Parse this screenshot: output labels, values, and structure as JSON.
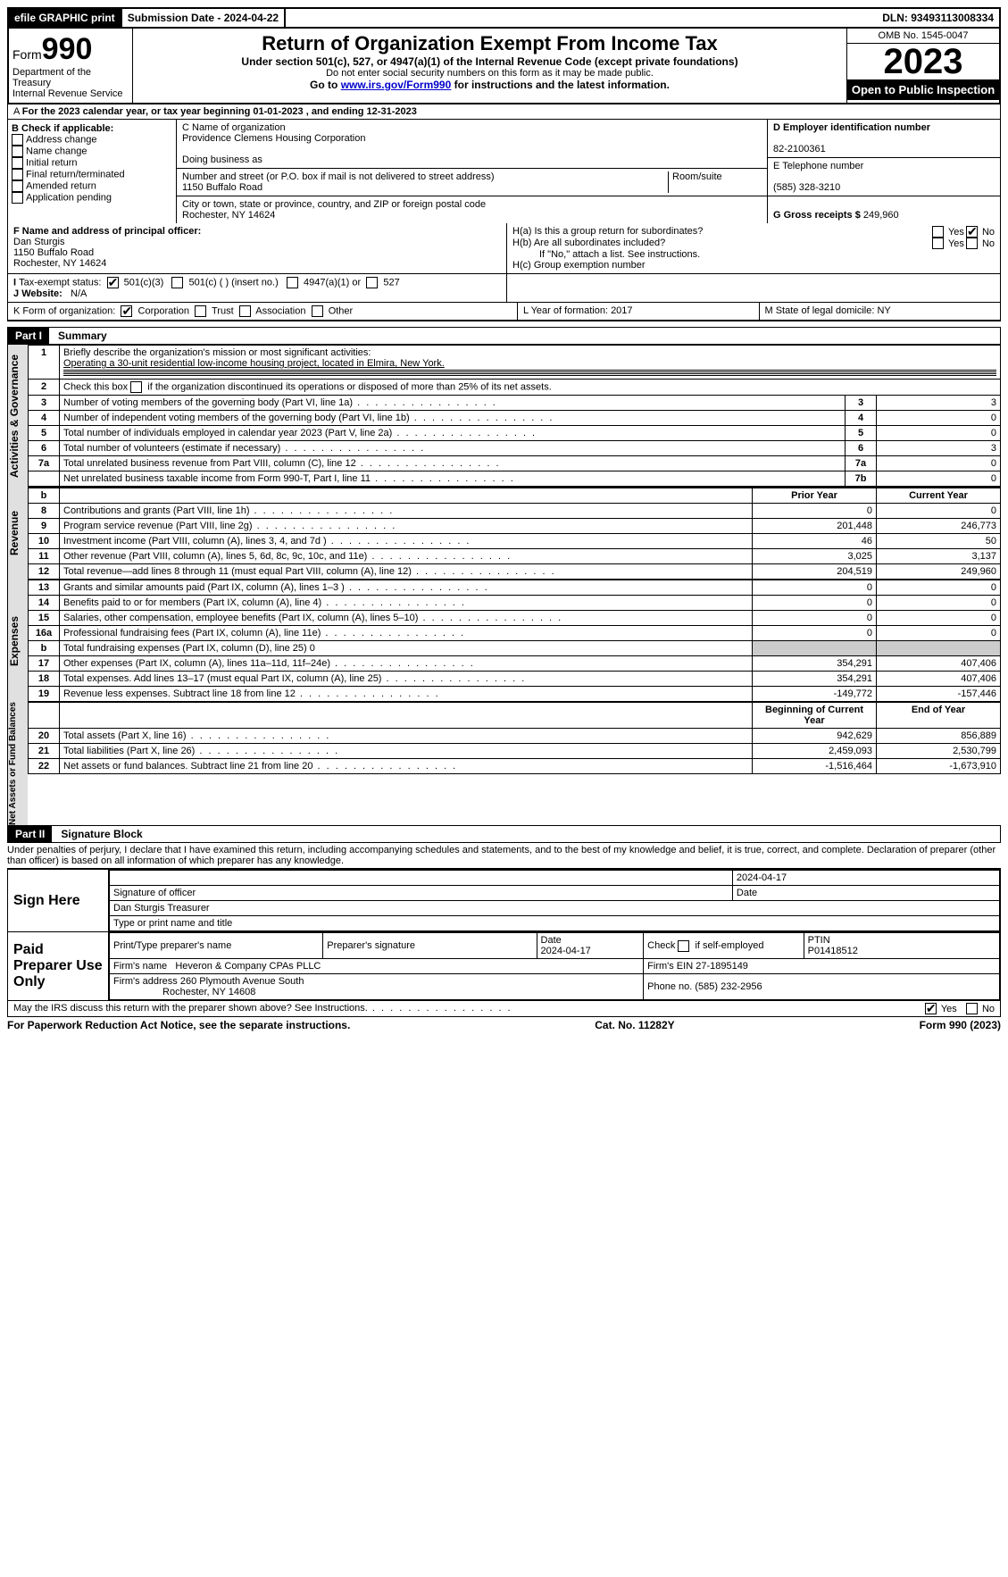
{
  "topbar": {
    "efile": "efile GRAPHIC print",
    "submission_label": "Submission Date - 2024-04-22",
    "dln_label": "DLN: 93493113008334"
  },
  "header": {
    "form_prefix": "Form",
    "form_num": "990",
    "dept": "Department of the Treasury",
    "irs": "Internal Revenue Service",
    "title": "Return of Organization Exempt From Income Tax",
    "subtitle": "Under section 501(c), 527, or 4947(a)(1) of the Internal Revenue Code (except private foundations)",
    "ssn_note": "Do not enter social security numbers on this form as it may be made public.",
    "goto_pre": "Go to ",
    "goto_link": "www.irs.gov/Form990",
    "goto_post": " for instructions and the latest information.",
    "omb": "OMB No. 1545-0047",
    "year": "2023",
    "open": "Open to Public Inspection"
  },
  "A": "For the 2023 calendar year, or tax year beginning 01-01-2023   , and ending 12-31-2023",
  "B": {
    "label": "B Check if applicable:",
    "opts": [
      "Address change",
      "Name change",
      "Initial return",
      "Final return/terminated",
      "Amended return",
      "Application pending"
    ]
  },
  "C": {
    "name_lbl": "C Name of organization",
    "name": "Providence Clemens Housing Corporation",
    "dba_lbl": "Doing business as",
    "dba": "",
    "addr_lbl": "Number and street (or P.O. box if mail is not delivered to street address)",
    "room_lbl": "Room/suite",
    "addr": "1150 Buffalo Road",
    "city_lbl": "City or town, state or province, country, and ZIP or foreign postal code",
    "city": "Rochester, NY  14624"
  },
  "D": {
    "lbl": "D Employer identification number",
    "val": "82-2100361"
  },
  "E": {
    "lbl": "E Telephone number",
    "val": "(585) 328-3210"
  },
  "G": {
    "lbl": "G Gross receipts $",
    "val": "249,960"
  },
  "F": {
    "lbl": "F  Name and address of principal officer:",
    "name": "Dan Sturgis",
    "addr1": "1150 Buffalo Road",
    "addr2": "Rochester, NY  14624"
  },
  "H": {
    "a_lbl": "H(a)  Is this a group return for subordinates?",
    "b_lbl": "H(b)  Are all subordinates included?",
    "b_note": "If \"No,\" attach a list. See instructions.",
    "c_lbl": "H(c)  Group exemption number",
    "yes": "Yes",
    "no": "No"
  },
  "I": {
    "lbl": "Tax-exempt status:",
    "o1": "501(c)(3)",
    "o2": "501(c) (  ) (insert no.)",
    "o3": "4947(a)(1) or",
    "o4": "527"
  },
  "J": {
    "lbl": "Website:",
    "val": "N/A"
  },
  "K": {
    "lbl": "K Form of organization:",
    "o1": "Corporation",
    "o2": "Trust",
    "o3": "Association",
    "o4": "Other"
  },
  "L": {
    "lbl": "L Year of formation:",
    "val": "2017"
  },
  "M": {
    "lbl": "M State of legal domicile:",
    "val": "NY"
  },
  "part1": {
    "hdr": "Part I",
    "title": "Summary"
  },
  "summary": {
    "q1_lbl": "Briefly describe the organization's mission or most significant activities:",
    "q1_val": "Operating a 30-unit residential low-income housing project, located in Elmira, New York.",
    "q2": "Check this box      if the organization discontinued its operations or disposed of more than 25% of its net assets.",
    "lines_gov": [
      {
        "n": "3",
        "t": "Number of voting members of the governing body (Part VI, line 1a)",
        "k": "3",
        "v": "3"
      },
      {
        "n": "4",
        "t": "Number of independent voting members of the governing body (Part VI, line 1b)",
        "k": "4",
        "v": "0"
      },
      {
        "n": "5",
        "t": "Total number of individuals employed in calendar year 2023 (Part V, line 2a)",
        "k": "5",
        "v": "0"
      },
      {
        "n": "6",
        "t": "Total number of volunteers (estimate if necessary)",
        "k": "6",
        "v": "3"
      },
      {
        "n": "7a",
        "t": "Total unrelated business revenue from Part VIII, column (C), line 12",
        "k": "7a",
        "v": "0"
      },
      {
        "n": "",
        "t": "Net unrelated business taxable income from Form 990-T, Part I, line 11",
        "k": "7b",
        "v": "0"
      }
    ],
    "col_prior": "Prior Year",
    "col_curr": "Current Year",
    "rev": [
      {
        "n": "8",
        "t": "Contributions and grants (Part VIII, line 1h)",
        "p": "0",
        "c": "0"
      },
      {
        "n": "9",
        "t": "Program service revenue (Part VIII, line 2g)",
        "p": "201,448",
        "c": "246,773"
      },
      {
        "n": "10",
        "t": "Investment income (Part VIII, column (A), lines 3, 4, and 7d )",
        "p": "46",
        "c": "50"
      },
      {
        "n": "11",
        "t": "Other revenue (Part VIII, column (A), lines 5, 6d, 8c, 9c, 10c, and 11e)",
        "p": "3,025",
        "c": "3,137"
      },
      {
        "n": "12",
        "t": "Total revenue—add lines 8 through 11 (must equal Part VIII, column (A), line 12)",
        "p": "204,519",
        "c": "249,960"
      }
    ],
    "exp": [
      {
        "n": "13",
        "t": "Grants and similar amounts paid (Part IX, column (A), lines 1–3 )",
        "p": "0",
        "c": "0"
      },
      {
        "n": "14",
        "t": "Benefits paid to or for members (Part IX, column (A), line 4)",
        "p": "0",
        "c": "0"
      },
      {
        "n": "15",
        "t": "Salaries, other compensation, employee benefits (Part IX, column (A), lines 5–10)",
        "p": "0",
        "c": "0"
      },
      {
        "n": "16a",
        "t": "Professional fundraising fees (Part IX, column (A), line 11e)",
        "p": "0",
        "c": "0"
      },
      {
        "n": "b",
        "t": "Total fundraising expenses (Part IX, column (D), line 25) 0",
        "p": "",
        "c": "",
        "shade": true
      },
      {
        "n": "17",
        "t": "Other expenses (Part IX, column (A), lines 11a–11d, 11f–24e)",
        "p": "354,291",
        "c": "407,406"
      },
      {
        "n": "18",
        "t": "Total expenses. Add lines 13–17 (must equal Part IX, column (A), line 25)",
        "p": "354,291",
        "c": "407,406"
      },
      {
        "n": "19",
        "t": "Revenue less expenses. Subtract line 18 from line 12",
        "p": "-149,772",
        "c": "-157,446"
      }
    ],
    "col_beg": "Beginning of Current Year",
    "col_end": "End of Year",
    "net": [
      {
        "n": "20",
        "t": "Total assets (Part X, line 16)",
        "p": "942,629",
        "c": "856,889"
      },
      {
        "n": "21",
        "t": "Total liabilities (Part X, line 26)",
        "p": "2,459,093",
        "c": "2,530,799"
      },
      {
        "n": "22",
        "t": "Net assets or fund balances. Subtract line 21 from line 20",
        "p": "-1,516,464",
        "c": "-1,673,910"
      }
    ],
    "side_gov": "Activities & Governance",
    "side_rev": "Revenue",
    "side_exp": "Expenses",
    "side_net": "Net Assets or Fund Balances"
  },
  "part2": {
    "hdr": "Part II",
    "title": "Signature Block"
  },
  "penalties": "Under penalties of perjury, I declare that I have examined this return, including accompanying schedules and statements, and to the best of my knowledge and belief, it is true, correct, and complete. Declaration of preparer (other than officer) is based on all information of which preparer has any knowledge.",
  "sign": {
    "here": "Sign Here",
    "sig_officer": "Signature of officer",
    "date_lbl": "Date",
    "date1": "2024-04-17",
    "name_title": "Dan Sturgis Treasurer",
    "type_lbl": "Type or print name and title"
  },
  "paid": {
    "here": "Paid Preparer Use Only",
    "h1": "Print/Type preparer's name",
    "h2": "Preparer's signature",
    "h3": "Date",
    "h4": "Check        if self-employed",
    "h5": "PTIN",
    "date": "2024-04-17",
    "ptin": "P01418512",
    "firm_lbl": "Firm's name",
    "firm": "Heveron & Company CPAs PLLC",
    "ein_lbl": "Firm's EIN",
    "ein": "27-1895149",
    "addr_lbl": "Firm's address",
    "addr1": "260 Plymouth Avenue South",
    "addr2": "Rochester, NY  14608",
    "phone_lbl": "Phone no.",
    "phone": "(585) 232-2956"
  },
  "discuss": "May the IRS discuss this return with the preparer shown above? See Instructions.",
  "footer": {
    "l": "For Paperwork Reduction Act Notice, see the separate instructions.",
    "m": "Cat. No. 11282Y",
    "r": "Form 990 (2023)"
  }
}
